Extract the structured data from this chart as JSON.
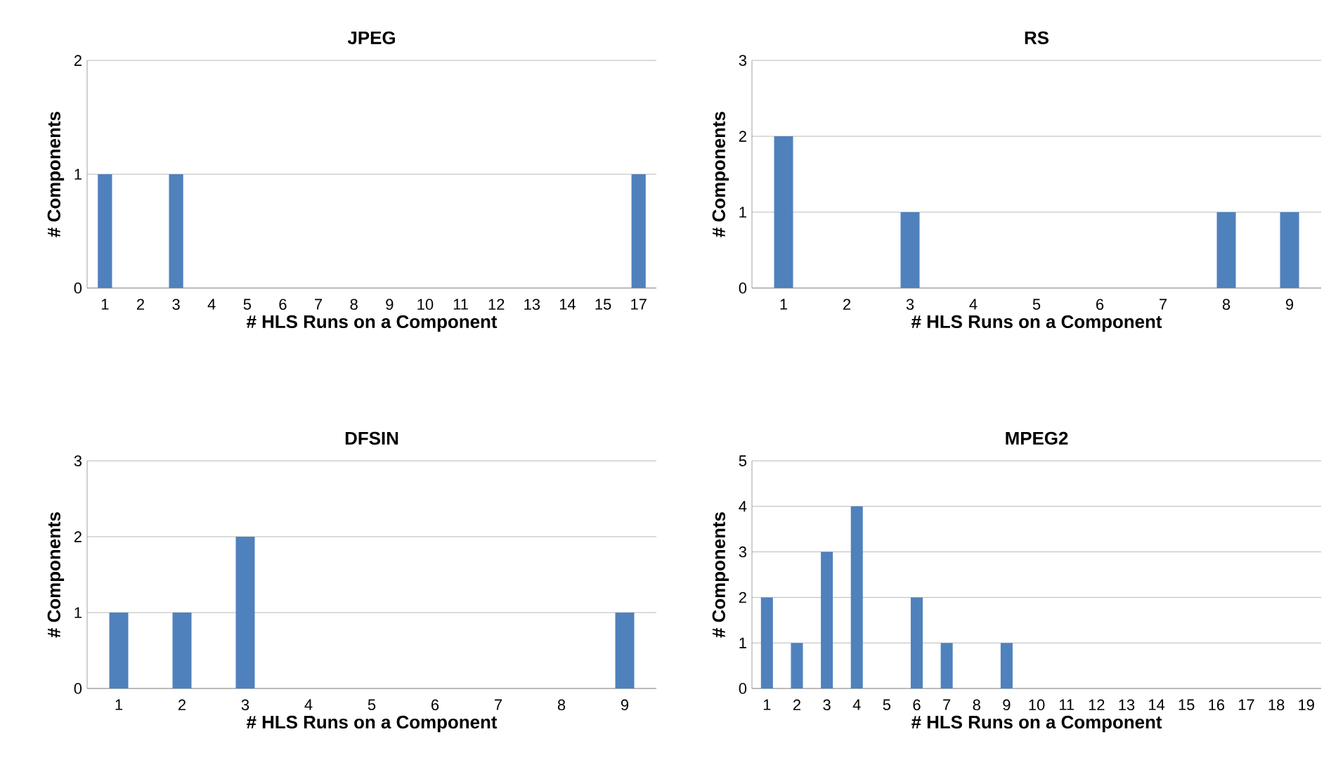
{
  "chart_data": [
    {
      "type": "bar",
      "title": "JPEG",
      "xlabel": "# HLS Runs on a Component",
      "ylabel": "# Components",
      "categories": [
        "1",
        "2",
        "3",
        "4",
        "5",
        "6",
        "7",
        "8",
        "9",
        "10",
        "11",
        "12",
        "13",
        "14",
        "15",
        "17"
      ],
      "values": [
        1,
        0,
        1,
        0,
        0,
        0,
        0,
        0,
        0,
        0,
        0,
        0,
        0,
        0,
        0,
        1
      ],
      "color": "#4f81bd",
      "ylim": [
        0,
        2
      ],
      "yticks": [
        0,
        1,
        2
      ],
      "grid": "y"
    },
    {
      "type": "bar",
      "title": "RS",
      "xlabel": "# HLS Runs on a Component",
      "ylabel": "# Components",
      "categories": [
        "1",
        "2",
        "3",
        "4",
        "5",
        "6",
        "7",
        "8",
        "9"
      ],
      "values": [
        2,
        0,
        1,
        0,
        0,
        0,
        0,
        1,
        1
      ],
      "color": "#4f81bd",
      "ylim": [
        0,
        3
      ],
      "yticks": [
        0,
        1,
        2,
        3
      ],
      "grid": "y"
    },
    {
      "type": "bar",
      "title": "DFSIN",
      "xlabel": "# HLS Runs on a Component",
      "ylabel": "# Components",
      "categories": [
        "1",
        "2",
        "3",
        "4",
        "5",
        "6",
        "7",
        "8",
        "9"
      ],
      "values": [
        1,
        1,
        2,
        0,
        0,
        0,
        0,
        0,
        1
      ],
      "color": "#4f81bd",
      "ylim": [
        0,
        3
      ],
      "yticks": [
        0,
        1,
        2,
        3
      ],
      "grid": "y"
    },
    {
      "type": "bar",
      "title": "MPEG2",
      "xlabel": "# HLS Runs on a Component",
      "ylabel": "# Components",
      "categories": [
        "1",
        "2",
        "3",
        "4",
        "5",
        "6",
        "7",
        "8",
        "9",
        "10",
        "11",
        "12",
        "13",
        "14",
        "15",
        "16",
        "17",
        "18",
        "19"
      ],
      "values": [
        2,
        1,
        3,
        4,
        0,
        2,
        1,
        0,
        1,
        0,
        0,
        0,
        0,
        0,
        0,
        0,
        0,
        0,
        0
      ],
      "color": "#4f81bd",
      "ylim": [
        0,
        5
      ],
      "yticks": [
        0,
        1,
        2,
        3,
        4,
        5
      ],
      "grid": "y"
    }
  ]
}
